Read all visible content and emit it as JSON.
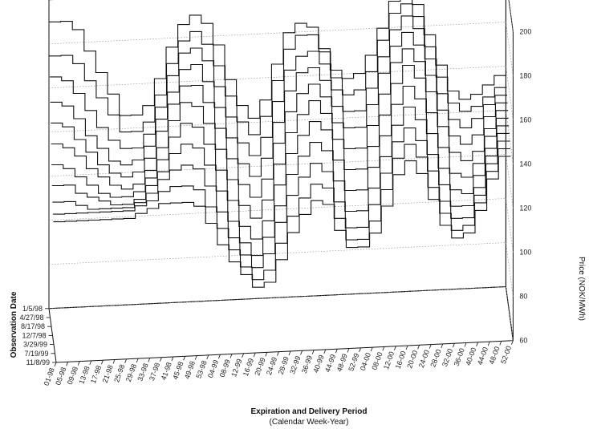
{
  "chart_data": {
    "type": "line",
    "view": "3d",
    "z_axis": {
      "label": "Price (NOK/MWh)",
      "ticks": [
        "60",
        "80",
        "100",
        "120",
        "140",
        "160",
        "180",
        "200"
      ],
      "range": [
        60,
        200
      ]
    },
    "y_axis": {
      "label": "Observation Date",
      "ticks": [
        "1/5/98",
        "4/27/98",
        "8/17/98",
        "12/7/98",
        "3/29/99",
        "7/19/99",
        "11/8/99"
      ]
    },
    "x_axis": {
      "label_line1": "Expiration and Delivery Period",
      "label_line2": "(Calendar Week-Year)",
      "ticks": [
        "01-98",
        "05-98",
        "09-98",
        "13-98",
        "17-98",
        "21-98",
        "25-98",
        "29-98",
        "33-98",
        "37-98",
        "41-98",
        "45-98",
        "49-98",
        "53-98",
        "04-99",
        "08-99",
        "12-99",
        "16-99",
        "20-99",
        "24-99",
        "28-99",
        "32-99",
        "36-99",
        "40-99",
        "44-99",
        "48-99",
        "52-99",
        "04-00",
        "08-00",
        "12-00",
        "16-00",
        "20-00",
        "24-00",
        "28-00",
        "32-00",
        "36-00",
        "40-00",
        "44-00",
        "48-00",
        "52-00"
      ]
    },
    "grid": true,
    "series_color": "#111111",
    "series": [
      {
        "obs_index": 0,
        "values": [
          190,
          190,
          186,
          176,
          166,
          156,
          146,
          146,
          150,
          162,
          176,
          186,
          190,
          186,
          176,
          160,
          148,
          142,
          150,
          166,
          180,
          184,
          182,
          172,
          162,
          158,
          160,
          168,
          180,
          192,
          196,
          190,
          176,
          162,
          150,
          146,
          148,
          152,
          156,
          156
        ]
      },
      {
        "obs_index": 1,
        "values": [
          176,
          176,
          172,
          164,
          156,
          148,
          140,
          140,
          144,
          156,
          170,
          180,
          184,
          178,
          168,
          154,
          142,
          136,
          144,
          160,
          174,
          180,
          180,
          172,
          160,
          152,
          154,
          162,
          176,
          188,
          192,
          186,
          172,
          158,
          146,
          142,
          144,
          148,
          152,
          152
        ]
      },
      {
        "obs_index": 2,
        "values": [
          168,
          166,
          160,
          152,
          144,
          138,
          134,
          134,
          140,
          152,
          166,
          176,
          178,
          172,
          160,
          146,
          134,
          128,
          136,
          152,
          166,
          172,
          174,
          168,
          156,
          146,
          146,
          156,
          170,
          182,
          188,
          182,
          168,
          152,
          140,
          136,
          140,
          146,
          150,
          150
        ]
      },
      {
        "obs_index": 3,
        "values": [
          158,
          156,
          150,
          142,
          136,
          130,
          128,
          130,
          136,
          148,
          160,
          170,
          172,
          164,
          152,
          138,
          126,
          120,
          128,
          144,
          158,
          166,
          168,
          162,
          150,
          140,
          140,
          150,
          164,
          176,
          182,
          176,
          162,
          146,
          134,
          130,
          134,
          142,
          148,
          148
        ]
      },
      {
        "obs_index": 4,
        "values": [
          150,
          148,
          142,
          136,
          130,
          126,
          124,
          126,
          132,
          144,
          156,
          164,
          164,
          156,
          144,
          130,
          118,
          112,
          120,
          136,
          150,
          158,
          162,
          156,
          144,
          132,
          132,
          142,
          156,
          170,
          176,
          170,
          156,
          140,
          128,
          124,
          128,
          138,
          146,
          146
        ]
      },
      {
        "obs_index": 5,
        "values": [
          142,
          140,
          136,
          130,
          126,
          122,
          120,
          122,
          128,
          138,
          150,
          158,
          156,
          148,
          136,
          122,
          110,
          104,
          112,
          128,
          142,
          150,
          156,
          150,
          138,
          124,
          124,
          134,
          148,
          162,
          170,
          164,
          148,
          132,
          120,
          118,
          124,
          136,
          144,
          144
        ]
      },
      {
        "obs_index": 6,
        "values": [
          134,
          132,
          128,
          124,
          120,
          118,
          118,
          120,
          126,
          134,
          144,
          150,
          148,
          140,
          128,
          114,
          102,
          96,
          104,
          120,
          134,
          142,
          148,
          144,
          130,
          116,
          116,
          126,
          140,
          154,
          162,
          156,
          140,
          124,
          114,
          112,
          120,
          132,
          142,
          142
        ]
      },
      {
        "obs_index": 7,
        "values": [
          126,
          126,
          122,
          120,
          118,
          116,
          116,
          118,
          124,
          130,
          138,
          142,
          140,
          132,
          120,
          106,
          96,
          90,
          98,
          112,
          126,
          134,
          140,
          136,
          122,
          108,
          108,
          118,
          132,
          146,
          154,
          148,
          132,
          118,
          108,
          108,
          116,
          130,
          140,
          140
        ]
      },
      {
        "obs_index": 8,
        "values": [
          120,
          120,
          118,
          116,
          116,
          116,
          116,
          118,
          122,
          128,
          132,
          134,
          132,
          124,
          112,
          100,
          92,
          86,
          92,
          106,
          118,
          126,
          132,
          128,
          114,
          102,
          102,
          112,
          126,
          140,
          146,
          140,
          126,
          112,
          104,
          104,
          114,
          128,
          138,
          138
        ]
      },
      {
        "obs_index": 9,
        "values": [
          116,
          116,
          116,
          116,
          116,
          116,
          116,
          118,
          120,
          124,
          126,
          126,
          124,
          116,
          106,
          96,
          88,
          82,
          86,
          98,
          110,
          118,
          124,
          122,
          108,
          98,
          98,
          106,
          120,
          134,
          140,
          134,
          120,
          108,
          100,
          102,
          112,
          126,
          136,
          136
        ]
      },
      {
        "obs_index": 10,
        "values": [
          114,
          114,
          114,
          114,
          114,
          114,
          114,
          116,
          118,
          120,
          120,
          120,
          118,
          110,
          100,
          92,
          86,
          80,
          82,
          92,
          104,
          112,
          118,
          116,
          104,
          96,
          96,
          102,
          114,
          128,
          134,
          128,
          116,
          104,
          98,
          100,
          110,
          124,
          134,
          134
        ]
      }
    ]
  }
}
